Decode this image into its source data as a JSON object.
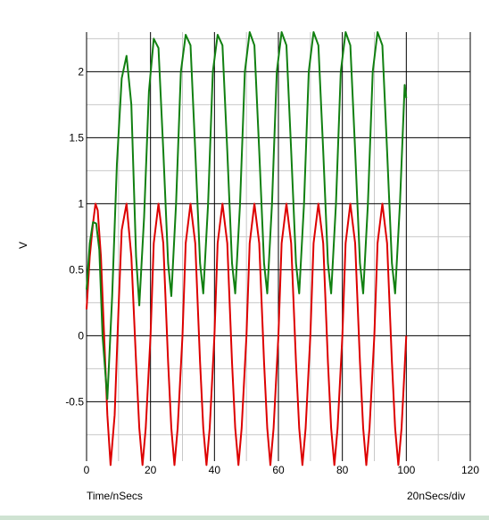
{
  "chart_data": {
    "type": "line",
    "title": "",
    "xlabel": "Time/nSecs",
    "xdiv_label": "20nSecs/div",
    "ylabel": "V",
    "xlim": [
      0,
      120
    ],
    "ylim": [
      -0.95,
      2.3
    ],
    "x_ticks": [
      0,
      20,
      40,
      60,
      80,
      100,
      120
    ],
    "x_tick_labels": [
      "0",
      "20",
      "40",
      "60",
      "80",
      "100",
      "120"
    ],
    "y_ticks": [
      -0.5,
      0,
      0.5,
      1,
      1.5,
      2
    ],
    "y_tick_labels": [
      "-0.5",
      "0",
      "0.5",
      "1",
      "1.5",
      "2"
    ],
    "grid": true,
    "series": [
      {
        "color": "#dd0000",
        "x": [
          0,
          1,
          2,
          2.8,
          3.5,
          4.5,
          5.5,
          6.5,
          7.5,
          8.8,
          10,
          11,
          12.5,
          14,
          15.5,
          16.5,
          17.5,
          18.5,
          20,
          21,
          22.5,
          24,
          25.5,
          26.5,
          27.5,
          28.5,
          30,
          31,
          32.5,
          34,
          35.5,
          36.5,
          37.5,
          38.5,
          40,
          41,
          42.5,
          44,
          45.5,
          46.5,
          47.5,
          48.5,
          50,
          51,
          52.5,
          54,
          55.5,
          56.5,
          57.5,
          58.5,
          60,
          61,
          62.5,
          64,
          65.5,
          66.5,
          67.5,
          68.5,
          70,
          71,
          72.5,
          74,
          75.5,
          76.5,
          77.5,
          78.5,
          80,
          81,
          82.5,
          84,
          85.5,
          86.5,
          87.5,
          88.5,
          90,
          91,
          92.5,
          94,
          95.5,
          96.5,
          97.5,
          98.5,
          100
        ],
        "y": [
          0.2,
          0.6,
          0.85,
          1.0,
          0.95,
          0.6,
          0.0,
          -0.6,
          -0.98,
          -0.6,
          0.2,
          0.8,
          1.0,
          0.6,
          -0.2,
          -0.7,
          -0.98,
          -0.7,
          0.0,
          0.7,
          1.0,
          0.7,
          -0.2,
          -0.7,
          -0.98,
          -0.7,
          0.0,
          0.7,
          1.0,
          0.7,
          -0.2,
          -0.7,
          -0.98,
          -0.7,
          0.0,
          0.7,
          1.0,
          0.7,
          -0.2,
          -0.7,
          -0.98,
          -0.7,
          0.0,
          0.7,
          1.0,
          0.7,
          -0.2,
          -0.7,
          -0.98,
          -0.7,
          0.0,
          0.7,
          1.0,
          0.7,
          -0.2,
          -0.7,
          -0.98,
          -0.7,
          0.0,
          0.7,
          1.0,
          0.7,
          -0.2,
          -0.7,
          -0.98,
          -0.7,
          0.0,
          0.7,
          1.0,
          0.7,
          -0.2,
          -0.7,
          -0.98,
          -0.7,
          0.0,
          0.7,
          1.0,
          0.7,
          -0.2,
          -0.7,
          -0.98,
          -0.7,
          0.0
        ]
      },
      {
        "color": "#118011",
        "x": [
          0,
          1,
          2,
          3,
          4,
          5,
          6.5,
          8,
          9.5,
          11,
          12.5,
          14,
          15.5,
          16.5,
          18,
          19.5,
          21,
          22.5,
          24,
          25.5,
          26.5,
          28,
          29.5,
          31,
          32.5,
          34,
          35.5,
          36.5,
          38,
          39.5,
          41,
          42.5,
          44,
          45.5,
          46.5,
          48,
          49.5,
          51,
          52.5,
          54,
          55.5,
          56.5,
          58,
          59.5,
          61,
          62.5,
          64,
          65.5,
          66.5,
          68,
          69.5,
          71,
          72.5,
          74,
          75.5,
          76.5,
          78,
          79.5,
          81,
          82.5,
          84,
          85.5,
          86.5,
          88,
          89.5,
          91,
          92.5,
          94,
          95.5,
          96.5,
          98,
          99.5,
          100
        ],
        "y": [
          0.35,
          0.7,
          0.86,
          0.85,
          0.65,
          0.0,
          -0.48,
          0.3,
          1.3,
          1.95,
          2.12,
          1.75,
          0.6,
          0.23,
          0.9,
          1.85,
          2.25,
          2.18,
          1.4,
          0.55,
          0.3,
          1.0,
          2.0,
          2.28,
          2.2,
          1.4,
          0.55,
          0.32,
          1.0,
          2.0,
          2.28,
          2.2,
          1.4,
          0.55,
          0.32,
          1.0,
          2.0,
          2.3,
          2.2,
          1.4,
          0.55,
          0.32,
          1.0,
          2.0,
          2.3,
          2.2,
          1.4,
          0.55,
          0.32,
          1.0,
          2.0,
          2.3,
          2.2,
          1.4,
          0.55,
          0.32,
          1.0,
          2.0,
          2.3,
          2.2,
          1.4,
          0.55,
          0.32,
          1.0,
          2.0,
          2.3,
          2.2,
          1.4,
          0.55,
          0.32,
          1.0,
          1.9,
          1.8
        ]
      }
    ]
  }
}
